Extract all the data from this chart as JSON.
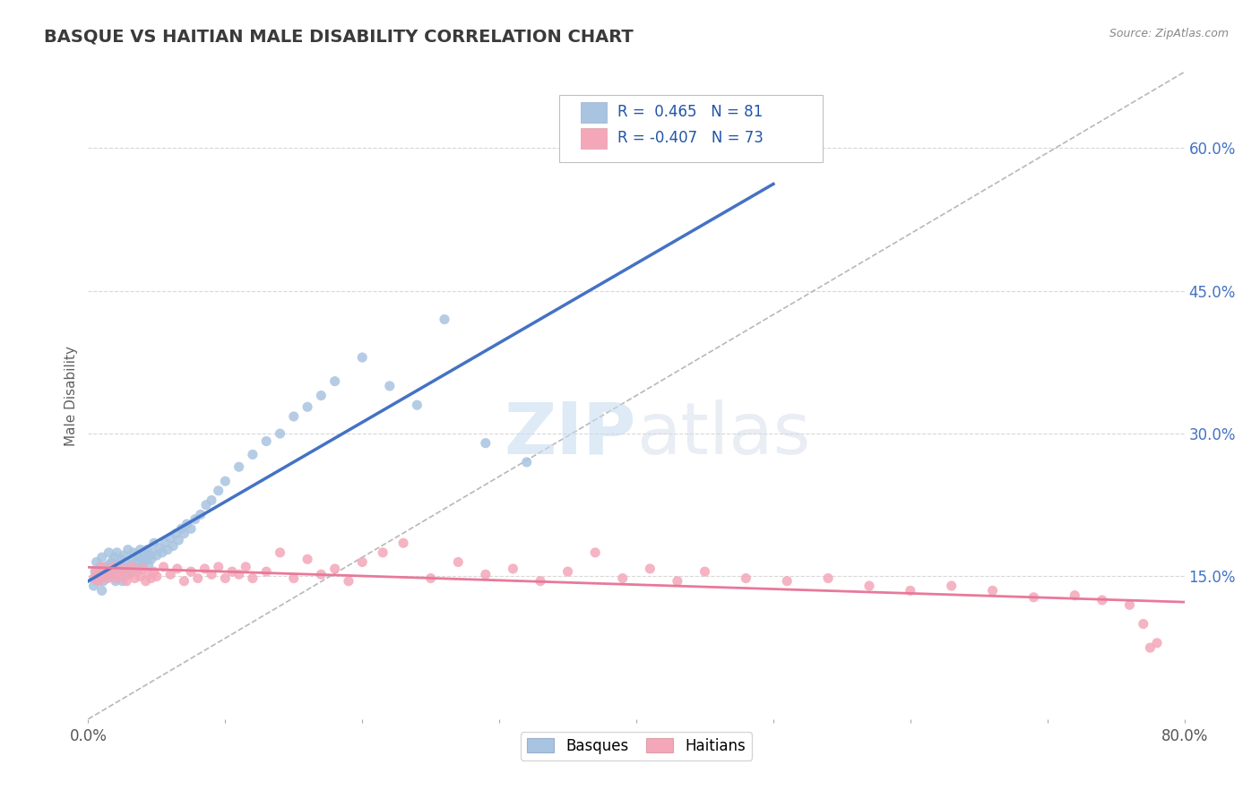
{
  "title": "BASQUE VS HAITIAN MALE DISABILITY CORRELATION CHART",
  "source": "Source: ZipAtlas.com",
  "ylabel": "Male Disability",
  "xlim": [
    0.0,
    0.8
  ],
  "ylim": [
    0.0,
    0.68
  ],
  "xticks": [
    0.0,
    0.1,
    0.2,
    0.3,
    0.4,
    0.5,
    0.6,
    0.7,
    0.8
  ],
  "yticks_right": [
    0.15,
    0.3,
    0.45,
    0.6
  ],
  "ytick_right_labels": [
    "15.0%",
    "30.0%",
    "45.0%",
    "60.0%"
  ],
  "basque_color": "#a8c4e0",
  "haitian_color": "#f4a7b9",
  "basque_line_color": "#4472c4",
  "haitian_line_color": "#e8799a",
  "ref_line_color": "#b8b8b8",
  "legend_label_basque": "Basques",
  "legend_label_haitian": "Haitians",
  "watermark_zip": "ZIP",
  "watermark_atlas": "atlas",
  "background_color": "#ffffff",
  "grid_color": "#d8d8d8",
  "title_color": "#3a3a3a",
  "axis_label_color": "#606060",
  "basque_x": [
    0.004,
    0.005,
    0.006,
    0.007,
    0.008,
    0.009,
    0.01,
    0.01,
    0.011,
    0.012,
    0.013,
    0.014,
    0.015,
    0.015,
    0.016,
    0.017,
    0.018,
    0.019,
    0.02,
    0.02,
    0.021,
    0.022,
    0.023,
    0.024,
    0.025,
    0.026,
    0.027,
    0.028,
    0.029,
    0.03,
    0.031,
    0.032,
    0.033,
    0.034,
    0.035,
    0.036,
    0.037,
    0.038,
    0.039,
    0.04,
    0.041,
    0.042,
    0.043,
    0.044,
    0.045,
    0.046,
    0.047,
    0.048,
    0.05,
    0.052,
    0.054,
    0.056,
    0.058,
    0.06,
    0.062,
    0.064,
    0.066,
    0.068,
    0.07,
    0.072,
    0.075,
    0.078,
    0.082,
    0.086,
    0.09,
    0.095,
    0.1,
    0.11,
    0.12,
    0.13,
    0.14,
    0.15,
    0.16,
    0.17,
    0.18,
    0.2,
    0.22,
    0.24,
    0.26,
    0.29,
    0.32
  ],
  "basque_y": [
    0.14,
    0.155,
    0.165,
    0.145,
    0.15,
    0.16,
    0.135,
    0.17,
    0.145,
    0.155,
    0.16,
    0.148,
    0.162,
    0.175,
    0.152,
    0.165,
    0.155,
    0.17,
    0.145,
    0.158,
    0.175,
    0.162,
    0.155,
    0.168,
    0.145,
    0.172,
    0.16,
    0.152,
    0.178,
    0.162,
    0.155,
    0.168,
    0.175,
    0.158,
    0.165,
    0.172,
    0.16,
    0.178,
    0.168,
    0.165,
    0.175,
    0.168,
    0.178,
    0.162,
    0.172,
    0.168,
    0.175,
    0.185,
    0.172,
    0.18,
    0.175,
    0.185,
    0.178,
    0.19,
    0.182,
    0.195,
    0.188,
    0.2,
    0.195,
    0.205,
    0.2,
    0.21,
    0.215,
    0.225,
    0.23,
    0.24,
    0.25,
    0.265,
    0.278,
    0.292,
    0.3,
    0.318,
    0.328,
    0.34,
    0.355,
    0.38,
    0.35,
    0.33,
    0.42,
    0.29,
    0.27
  ],
  "haitian_x": [
    0.004,
    0.006,
    0.008,
    0.01,
    0.012,
    0.014,
    0.016,
    0.018,
    0.02,
    0.022,
    0.024,
    0.026,
    0.028,
    0.03,
    0.032,
    0.034,
    0.036,
    0.038,
    0.04,
    0.042,
    0.044,
    0.046,
    0.048,
    0.05,
    0.055,
    0.06,
    0.065,
    0.07,
    0.075,
    0.08,
    0.085,
    0.09,
    0.095,
    0.1,
    0.105,
    0.11,
    0.115,
    0.12,
    0.13,
    0.14,
    0.15,
    0.16,
    0.17,
    0.18,
    0.19,
    0.2,
    0.215,
    0.23,
    0.25,
    0.27,
    0.29,
    0.31,
    0.33,
    0.35,
    0.37,
    0.39,
    0.41,
    0.43,
    0.45,
    0.48,
    0.51,
    0.54,
    0.57,
    0.6,
    0.63,
    0.66,
    0.69,
    0.72,
    0.74,
    0.76,
    0.77,
    0.775,
    0.78
  ],
  "haitian_y": [
    0.148,
    0.155,
    0.145,
    0.16,
    0.152,
    0.148,
    0.155,
    0.16,
    0.148,
    0.155,
    0.15,
    0.158,
    0.145,
    0.152,
    0.16,
    0.148,
    0.155,
    0.15,
    0.158,
    0.145,
    0.152,
    0.148,
    0.155,
    0.15,
    0.16,
    0.152,
    0.158,
    0.145,
    0.155,
    0.148,
    0.158,
    0.152,
    0.16,
    0.148,
    0.155,
    0.152,
    0.16,
    0.148,
    0.155,
    0.175,
    0.148,
    0.168,
    0.152,
    0.158,
    0.145,
    0.165,
    0.175,
    0.185,
    0.148,
    0.165,
    0.152,
    0.158,
    0.145,
    0.155,
    0.175,
    0.148,
    0.158,
    0.145,
    0.155,
    0.148,
    0.145,
    0.148,
    0.14,
    0.135,
    0.14,
    0.135,
    0.128,
    0.13,
    0.125,
    0.12,
    0.1,
    0.075,
    0.08
  ]
}
